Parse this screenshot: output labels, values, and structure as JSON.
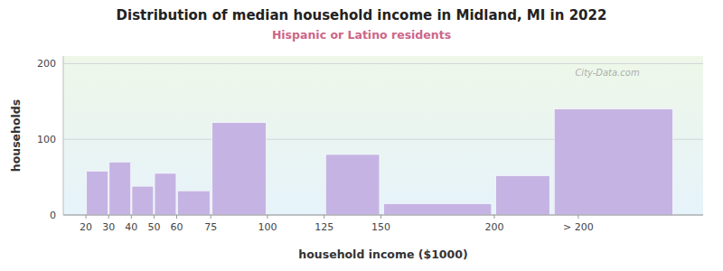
{
  "chart_data": {
    "type": "histogram",
    "title": "Distribution of median household income in Midland, MI in 2022",
    "subtitle": "Hispanic or Latino residents",
    "x_label": "household income ($1000)",
    "y_label": "households",
    "bins": [
      10,
      20,
      30,
      40,
      50,
      60,
      75,
      100,
      125,
      150,
      200,
      225,
      280
    ],
    "values": [
      0,
      58,
      70,
      38,
      55,
      32,
      122,
      0,
      80,
      15,
      52,
      140
    ],
    "color": "#c5b4e3",
    "xlim": [
      10,
      292
    ],
    "xticks": [
      20,
      30,
      40,
      50,
      60,
      75,
      100,
      125,
      150,
      200,
      {
        "value": 237,
        "label": "> 200"
      }
    ],
    "ylim": [
      0,
      210
    ],
    "yticks": [
      0,
      100,
      200
    ],
    "grid": true,
    "annotations": [
      "City-Data.com"
    ]
  }
}
